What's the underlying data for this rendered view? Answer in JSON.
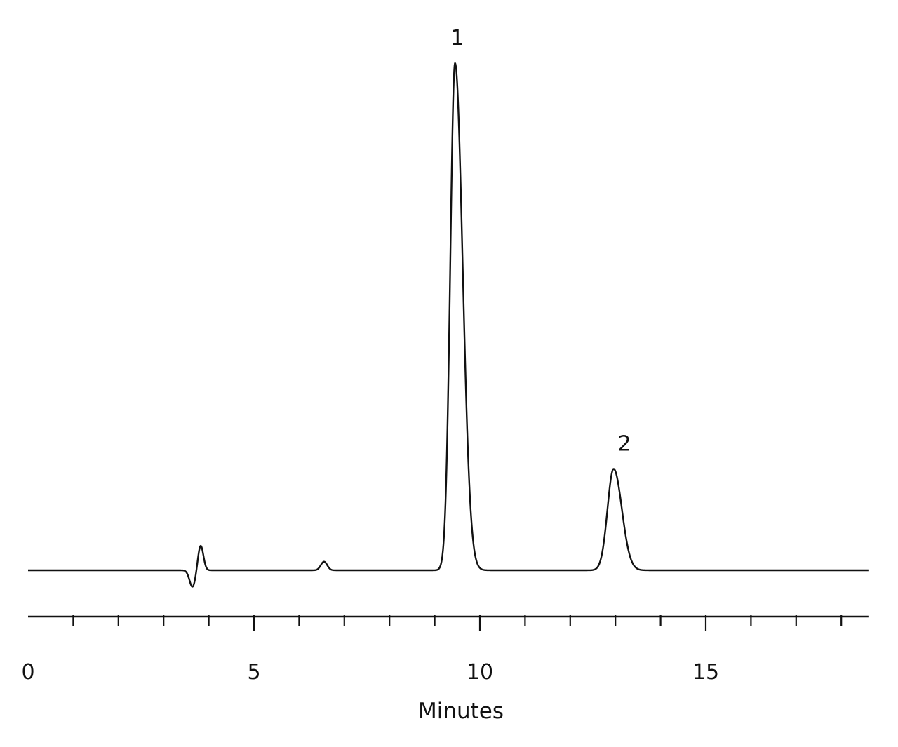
{
  "chart_data": {
    "type": "line",
    "title": "",
    "xlabel": "Minutes",
    "ylabel": "",
    "xlim": [
      0,
      18.6
    ],
    "ylim": [
      0,
      1
    ],
    "grid": false,
    "legend": "none",
    "x_ticks": [
      0,
      5,
      10,
      15
    ],
    "x_tick_labels": [
      "0",
      "5",
      "10",
      "15"
    ],
    "x_minor_step": 1,
    "line_color": "#111111",
    "baseline_x_range": [
      0,
      18.6
    ],
    "series": [
      {
        "features": [
          {
            "kind": "disturbance",
            "x": 3.75,
            "up": 0.049,
            "down": -0.033,
            "width": 0.06
          },
          {
            "kind": "peak",
            "x": 6.55,
            "height": 0.017,
            "width": 0.07
          },
          {
            "kind": "peak",
            "x": 9.45,
            "height": 1.0,
            "width": 0.105,
            "tail": 1.6
          },
          {
            "kind": "peak",
            "x": 12.96,
            "height": 0.2,
            "width": 0.135,
            "tail": 1.35
          }
        ]
      }
    ],
    "annotations": [
      {
        "text": "1",
        "x": 9.5,
        "y": 1.0
      },
      {
        "text": "2",
        "x": 13.2,
        "y": 0.2
      }
    ]
  }
}
